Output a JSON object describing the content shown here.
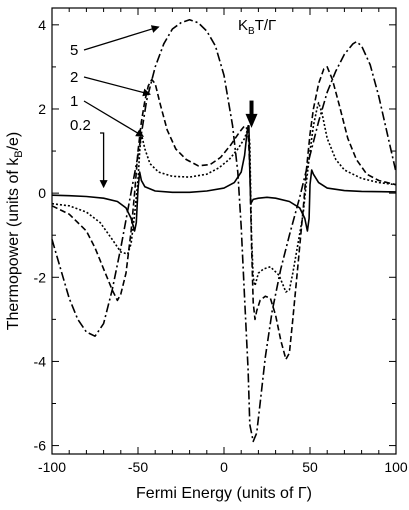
{
  "chart_data": {
    "type": "line",
    "xlabel": "Fermi Energy (units of Γ)",
    "ylabel": "Thermopower (units of k",
    "ylabel_sub": "B",
    "ylabel_end": "/e)",
    "xlim": [
      -100,
      100
    ],
    "ylim": [
      -6.2,
      4.4
    ],
    "xticks": [
      -100,
      -50,
      0,
      50,
      100
    ],
    "yticks": [
      -6,
      -4,
      -2,
      0,
      2,
      4
    ],
    "legend_title": {
      "main": "K",
      "sub": "B",
      "rest": "T/Γ"
    },
    "series": [
      {
        "name": "5",
        "style": "dashdot",
        "points": [
          [
            -100,
            -1.1
          ],
          [
            -95,
            -1.8
          ],
          [
            -90,
            -2.5
          ],
          [
            -85,
            -3.0
          ],
          [
            -80,
            -3.3
          ],
          [
            -75,
            -3.4
          ],
          [
            -70,
            -3.1
          ],
          [
            -65,
            -2.3
          ],
          [
            -60,
            -1.3
          ],
          [
            -55,
            -0.2
          ],
          [
            -50,
            0.9
          ],
          [
            -45,
            2.2
          ],
          [
            -40,
            3.0
          ],
          [
            -35,
            3.55
          ],
          [
            -30,
            3.9
          ],
          [
            -25,
            4.05
          ],
          [
            -20,
            4.12
          ],
          [
            -15,
            4.05
          ],
          [
            -10,
            3.85
          ],
          [
            -5,
            3.5
          ],
          [
            0,
            2.8
          ],
          [
            5,
            1.6
          ],
          [
            8,
            0.5
          ],
          [
            10,
            -0.8
          ],
          [
            12,
            -2.5
          ],
          [
            14,
            -4.2
          ],
          [
            15,
            -5.5
          ],
          [
            17,
            -5.9
          ],
          [
            19,
            -5.7
          ],
          [
            21,
            -5.0
          ],
          [
            24,
            -3.9
          ],
          [
            28,
            -2.8
          ],
          [
            33,
            -1.8
          ],
          [
            38,
            -1.0
          ],
          [
            44,
            -0.1
          ],
          [
            50,
            0.9
          ],
          [
            55,
            1.7
          ],
          [
            60,
            2.4
          ],
          [
            65,
            2.9
          ],
          [
            70,
            3.3
          ],
          [
            75,
            3.55
          ],
          [
            77,
            3.6
          ],
          [
            80,
            3.5
          ],
          [
            85,
            3.05
          ],
          [
            90,
            2.3
          ],
          [
            95,
            1.4
          ],
          [
            100,
            0.5
          ]
        ]
      },
      {
        "name": "2",
        "style": "dashed",
        "points": [
          [
            -100,
            -0.3
          ],
          [
            -90,
            -0.5
          ],
          [
            -80,
            -0.9
          ],
          [
            -75,
            -1.3
          ],
          [
            -70,
            -1.8
          ],
          [
            -65,
            -2.3
          ],
          [
            -62,
            -2.55
          ],
          [
            -60,
            -2.4
          ],
          [
            -57,
            -1.9
          ],
          [
            -54,
            -0.9
          ],
          [
            -52,
            0.0
          ],
          [
            -50,
            1.0
          ],
          [
            -48,
            1.7
          ],
          [
            -46,
            2.2
          ],
          [
            -44,
            2.55
          ],
          [
            -42,
            2.7
          ],
          [
            -40,
            2.6
          ],
          [
            -37,
            2.1
          ],
          [
            -33,
            1.5
          ],
          [
            -28,
            1.05
          ],
          [
            -22,
            0.8
          ],
          [
            -15,
            0.65
          ],
          [
            -8,
            0.68
          ],
          [
            -2,
            0.85
          ],
          [
            4,
            1.15
          ],
          [
            9,
            1.45
          ],
          [
            12,
            1.6
          ],
          [
            14,
            1.5
          ],
          [
            15,
            0.6
          ],
          [
            16,
            -1.2
          ],
          [
            17,
            -2.6
          ],
          [
            18,
            -3.0
          ],
          [
            19,
            -2.8
          ],
          [
            21,
            -2.55
          ],
          [
            24,
            -2.45
          ],
          [
            27,
            -2.5
          ],
          [
            30,
            -2.9
          ],
          [
            33,
            -3.5
          ],
          [
            36,
            -3.95
          ],
          [
            38,
            -3.8
          ],
          [
            40,
            -3.0
          ],
          [
            43,
            -1.7
          ],
          [
            46,
            -0.4
          ],
          [
            48,
            0.6
          ],
          [
            50,
            1.4
          ],
          [
            52,
            2.0
          ],
          [
            55,
            2.6
          ],
          [
            58,
            2.95
          ],
          [
            60,
            3.0
          ],
          [
            63,
            2.7
          ],
          [
            67,
            2.1
          ],
          [
            72,
            1.3
          ],
          [
            77,
            0.8
          ],
          [
            83,
            0.45
          ],
          [
            90,
            0.3
          ],
          [
            100,
            0.2
          ]
        ]
      },
      {
        "name": "1",
        "style": "dotted",
        "points": [
          [
            -100,
            -0.25
          ],
          [
            -90,
            -0.3
          ],
          [
            -80,
            -0.45
          ],
          [
            -72,
            -0.7
          ],
          [
            -65,
            -1.1
          ],
          [
            -60,
            -1.4
          ],
          [
            -56,
            -1.45
          ],
          [
            -54,
            -1.2
          ],
          [
            -52,
            -0.5
          ],
          [
            -50,
            0.3
          ],
          [
            -49,
            1.0
          ],
          [
            -48,
            1.4
          ],
          [
            -46,
            1.05
          ],
          [
            -43,
            0.7
          ],
          [
            -38,
            0.5
          ],
          [
            -30,
            0.4
          ],
          [
            -20,
            0.38
          ],
          [
            -10,
            0.45
          ],
          [
            -3,
            0.6
          ],
          [
            3,
            0.8
          ],
          [
            8,
            1.05
          ],
          [
            12,
            1.3
          ],
          [
            14,
            1.55
          ],
          [
            15,
            1.2
          ],
          [
            16,
            -1.0
          ],
          [
            17,
            -2.0
          ],
          [
            18,
            -2.2
          ],
          [
            20,
            -1.9
          ],
          [
            23,
            -1.8
          ],
          [
            27,
            -1.75
          ],
          [
            32,
            -1.95
          ],
          [
            36,
            -2.35
          ],
          [
            38,
            -2.3
          ],
          [
            40,
            -1.9
          ],
          [
            43,
            -1.2
          ],
          [
            46,
            -0.5
          ],
          [
            48,
            0.3
          ],
          [
            50,
            1.0
          ],
          [
            52,
            1.6
          ],
          [
            54,
            2.0
          ],
          [
            55,
            2.15
          ],
          [
            57,
            1.9
          ],
          [
            60,
            1.3
          ],
          [
            65,
            0.8
          ],
          [
            70,
            0.55
          ],
          [
            80,
            0.35
          ],
          [
            90,
            0.25
          ],
          [
            100,
            0.2
          ]
        ]
      },
      {
        "name": "0.2",
        "style": "solid",
        "points": [
          [
            -100,
            -0.05
          ],
          [
            -90,
            -0.06
          ],
          [
            -80,
            -0.08
          ],
          [
            -70,
            -0.12
          ],
          [
            -62,
            -0.2
          ],
          [
            -57,
            -0.35
          ],
          [
            -54,
            -0.6
          ],
          [
            -52,
            -0.9
          ],
          [
            -51,
            -0.7
          ],
          [
            -50,
            0.1
          ],
          [
            -49,
            0.5
          ],
          [
            -48,
            0.3
          ],
          [
            -46,
            0.15
          ],
          [
            -40,
            0.05
          ],
          [
            -30,
            0.02
          ],
          [
            -20,
            0.02
          ],
          [
            -10,
            0.05
          ],
          [
            0,
            0.12
          ],
          [
            6,
            0.25
          ],
          [
            10,
            0.5
          ],
          [
            12,
            0.9
          ],
          [
            13,
            1.3
          ],
          [
            14,
            1.6
          ],
          [
            14.5,
            1.6
          ],
          [
            15,
            0.5
          ],
          [
            15.5,
            -0.25
          ],
          [
            17,
            -0.15
          ],
          [
            20,
            -0.12
          ],
          [
            25,
            -0.1
          ],
          [
            30,
            -0.12
          ],
          [
            38,
            -0.2
          ],
          [
            44,
            -0.35
          ],
          [
            47,
            -0.6
          ],
          [
            48.5,
            -0.9
          ],
          [
            49.5,
            -0.6
          ],
          [
            50,
            0.2
          ],
          [
            51,
            0.55
          ],
          [
            52,
            0.45
          ],
          [
            55,
            0.25
          ],
          [
            60,
            0.12
          ],
          [
            70,
            0.06
          ],
          [
            80,
            0.04
          ],
          [
            100,
            0.03
          ]
        ]
      }
    ],
    "annotation_arrow": {
      "x": 16,
      "y_from": 2.2,
      "y_to": 1.55
    }
  }
}
